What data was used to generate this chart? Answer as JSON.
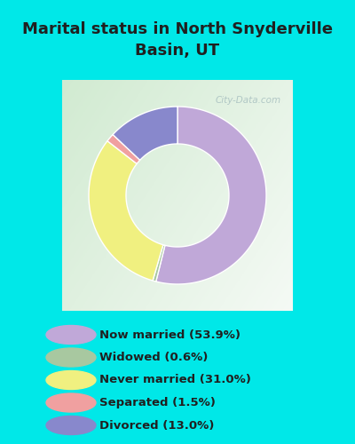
{
  "title": "Marital status in North Snyderville\nBasin, UT",
  "categories": [
    "Now married",
    "Widowed",
    "Never married",
    "Separated",
    "Divorced"
  ],
  "values": [
    53.9,
    0.6,
    31.0,
    1.5,
    13.0
  ],
  "colors": [
    "#c0a8d8",
    "#a8c8a0",
    "#f0f080",
    "#f0a0a0",
    "#8888cc"
  ],
  "legend_labels": [
    "Now married (53.9%)",
    "Widowed (0.6%)",
    "Never married (31.0%)",
    "Separated (1.5%)",
    "Divorced (13.0%)"
  ],
  "bg_color": "#00e8e8",
  "title_color": "#202020",
  "legend_text_color": "#202020",
  "watermark": "City-Data.com"
}
